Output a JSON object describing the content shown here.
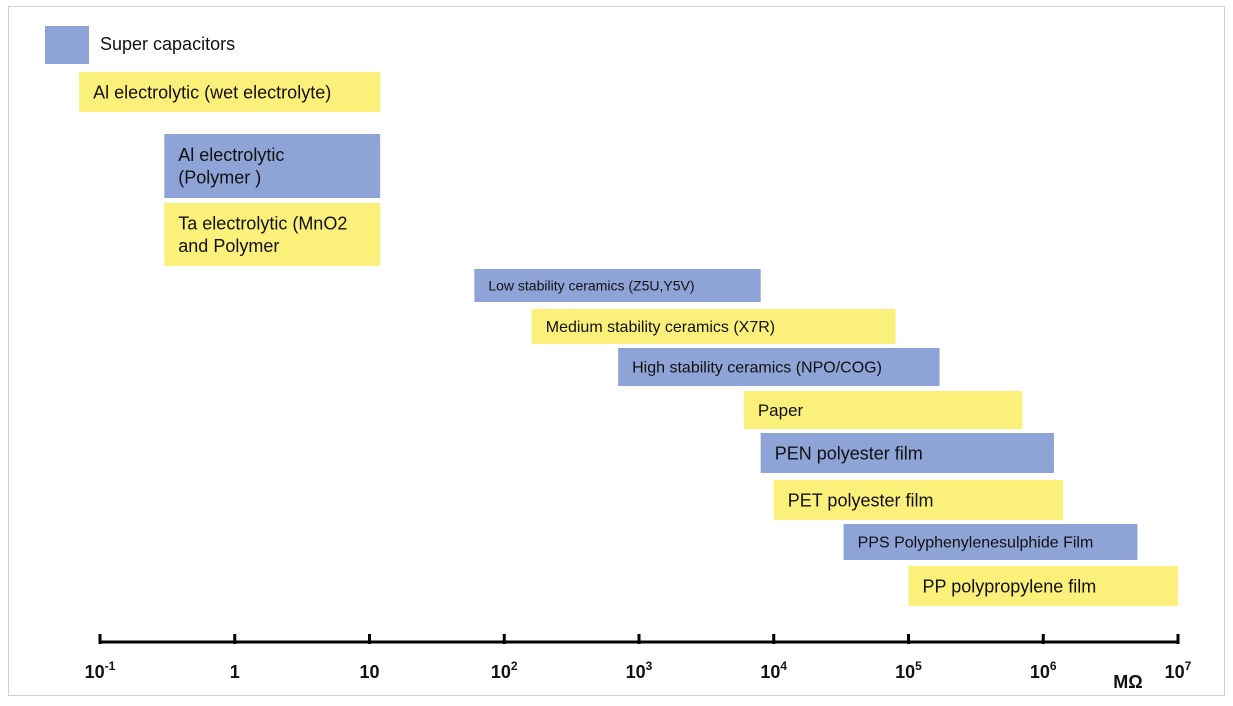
{
  "colors": {
    "blue": "#8ea4d6",
    "yellow": "#fbf07a",
    "axis": "#000000"
  },
  "chart_data": {
    "type": "bar",
    "orientation": "horizontal-range",
    "x_scale": "log",
    "xlim": [
      0.1,
      10000000
    ],
    "xlabel": "MΩ",
    "x_ticks": [
      {
        "base": "10",
        "exp": "-1",
        "value": 0.1
      },
      {
        "base": "1",
        "exp": "",
        "value": 1
      },
      {
        "base": "10",
        "exp": "",
        "value": 10
      },
      {
        "base": "10",
        "exp": "2",
        "value": 100
      },
      {
        "base": "10",
        "exp": "3",
        "value": 1000
      },
      {
        "base": "10",
        "exp": "4",
        "value": 10000
      },
      {
        "base": "10",
        "exp": "5",
        "value": 100000
      },
      {
        "base": "10",
        "exp": "6",
        "value": 1000000
      },
      {
        "base": "10",
        "exp": "7",
        "value": 10000000
      }
    ],
    "legend": {
      "label": "Super capacitors",
      "color": "blue"
    },
    "bars": [
      {
        "lines": [
          "Al electrolytic (wet electrolyte)"
        ],
        "start": 0.07,
        "end": 12,
        "color": "yellow"
      },
      {
        "lines": [
          "Al electrolytic",
          "(Polymer )"
        ],
        "start": 0.3,
        "end": 12,
        "color": "blue"
      },
      {
        "lines": [
          "Ta electrolytic (MnO2",
          "and Polymer"
        ],
        "start": 0.3,
        "end": 12,
        "color": "yellow"
      },
      {
        "lines": [
          "Low stability ceramics (Z5U,Y5V)"
        ],
        "start": 60,
        "end": 8000,
        "color": "blue"
      },
      {
        "lines": [
          "Medium stability ceramics (X7R)"
        ],
        "start": 160,
        "end": 80000,
        "color": "yellow"
      },
      {
        "lines": [
          "High stability ceramics (NPO/COG)"
        ],
        "start": 700,
        "end": 170000,
        "color": "blue"
      },
      {
        "lines": [
          "Paper"
        ],
        "start": 6000,
        "end": 700000,
        "color": "yellow"
      },
      {
        "lines": [
          "PEN polyester film"
        ],
        "start": 8000,
        "end": 1200000,
        "color": "blue"
      },
      {
        "lines": [
          "PET polyester film"
        ],
        "start": 10000,
        "end": 1400000,
        "color": "yellow"
      },
      {
        "lines": [
          "PPS Polyphenylenesulphide Film"
        ],
        "start": 33000,
        "end": 5000000,
        "color": "blue"
      },
      {
        "lines": [
          "PP polypropylene film"
        ],
        "start": 100000,
        "end": 10000000,
        "color": "yellow"
      }
    ]
  }
}
